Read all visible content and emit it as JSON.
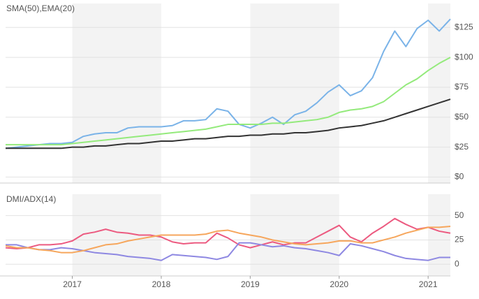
{
  "chart_data": [
    {
      "type": "line",
      "title": "SMA(50),EMA(20)",
      "x": [
        2016.25,
        2016.375,
        2016.5,
        2016.625,
        2016.75,
        2016.875,
        2017,
        2017.125,
        2017.25,
        2017.375,
        2017.5,
        2017.625,
        2017.75,
        2017.875,
        2018,
        2018.125,
        2018.25,
        2018.375,
        2018.5,
        2018.625,
        2018.75,
        2018.875,
        2019,
        2019.125,
        2019.25,
        2019.375,
        2019.5,
        2019.625,
        2019.75,
        2019.875,
        2020,
        2020.125,
        2020.25,
        2020.375,
        2020.5,
        2020.625,
        2020.75,
        2020.875,
        2021,
        2021.125,
        2021.25
      ],
      "xlim": [
        2016.25,
        2021.25
      ],
      "xticks": [
        2017,
        2018,
        2019,
        2020,
        2021
      ],
      "ylim": [
        -5,
        145
      ],
      "yticks": [
        {
          "value": 0,
          "label": "$0"
        },
        {
          "value": 25,
          "label": "$25"
        },
        {
          "value": 50,
          "label": "$50"
        },
        {
          "value": 75,
          "label": "$75"
        },
        {
          "value": 100,
          "label": "$100"
        },
        {
          "value": 125,
          "label": "$125"
        }
      ],
      "grid": true,
      "series": [
        {
          "color": "#7ab3e8",
          "values": [
            24,
            25,
            26,
            27,
            28,
            28,
            29,
            34,
            36,
            37,
            37,
            41,
            42,
            42,
            42,
            43,
            47,
            47,
            48,
            57,
            55,
            44,
            41,
            45,
            50,
            44,
            52,
            55,
            62,
            71,
            77,
            68,
            72,
            83,
            105,
            122,
            109,
            124,
            131,
            122,
            132
          ]
        },
        {
          "color": "#94ea7c",
          "values": [
            27,
            27,
            27,
            27,
            27,
            27,
            28,
            29,
            30,
            31,
            32,
            33,
            34,
            35,
            36,
            37,
            38,
            39,
            40,
            42,
            44,
            44,
            44,
            44,
            45,
            45,
            46,
            47,
            48,
            50,
            54,
            56,
            57,
            59,
            63,
            70,
            77,
            82,
            89,
            95,
            100
          ]
        },
        {
          "color": "#333333",
          "values": [
            24,
            24,
            24,
            24,
            24,
            24,
            25,
            25,
            26,
            26,
            27,
            28,
            28,
            29,
            30,
            30,
            31,
            32,
            32,
            33,
            34,
            34,
            35,
            35,
            36,
            36,
            37,
            37,
            38,
            39,
            41,
            42,
            43,
            45,
            47,
            50,
            53,
            56,
            59,
            62,
            65
          ]
        }
      ]
    },
    {
      "type": "line",
      "title": "DMI/ADX(14)",
      "x": [
        2016.25,
        2016.375,
        2016.5,
        2016.625,
        2016.75,
        2016.875,
        2017,
        2017.125,
        2017.25,
        2017.375,
        2017.5,
        2017.625,
        2017.75,
        2017.875,
        2018,
        2018.125,
        2018.25,
        2018.375,
        2018.5,
        2018.625,
        2018.75,
        2018.875,
        2019,
        2019.125,
        2019.25,
        2019.375,
        2019.5,
        2019.625,
        2019.75,
        2019.875,
        2020,
        2020.125,
        2020.25,
        2020.375,
        2020.5,
        2020.625,
        2020.75,
        2020.875,
        2021,
        2021.125,
        2021.25
      ],
      "xlim": [
        2016.25,
        2021.25
      ],
      "xticks": [
        2017,
        2018,
        2019,
        2020,
        2021
      ],
      "ylim": [
        -12,
        72
      ],
      "yticks": [
        0,
        25,
        50
      ],
      "grid": true,
      "series": [
        {
          "color": "#ec5a80",
          "values": [
            17,
            16,
            17,
            20,
            20,
            21,
            24,
            31,
            33,
            36,
            33,
            32,
            30,
            30,
            28,
            23,
            21,
            22,
            22,
            32,
            27,
            20,
            17,
            20,
            23,
            20,
            22,
            22,
            28,
            34,
            40,
            28,
            23,
            32,
            39,
            47,
            41,
            36,
            38,
            34,
            32
          ]
        },
        {
          "color": "#8e88e2",
          "values": [
            20,
            20,
            17,
            15,
            15,
            17,
            16,
            14,
            12,
            11,
            10,
            8,
            7,
            6,
            4,
            10,
            9,
            8,
            7,
            5,
            8,
            22,
            22,
            20,
            18,
            19,
            17,
            16,
            14,
            12,
            9,
            21,
            19,
            16,
            13,
            9,
            6,
            5,
            4,
            7,
            7
          ]
        },
        {
          "color": "#f6a65c",
          "values": [
            19,
            17,
            17,
            15,
            14,
            12,
            12,
            14,
            17,
            20,
            21,
            24,
            26,
            28,
            30,
            30,
            30,
            30,
            31,
            34,
            35,
            32,
            30,
            28,
            25,
            23,
            21,
            20,
            21,
            22,
            24,
            24,
            22,
            22,
            25,
            28,
            32,
            35,
            38,
            38,
            39
          ]
        }
      ]
    }
  ]
}
